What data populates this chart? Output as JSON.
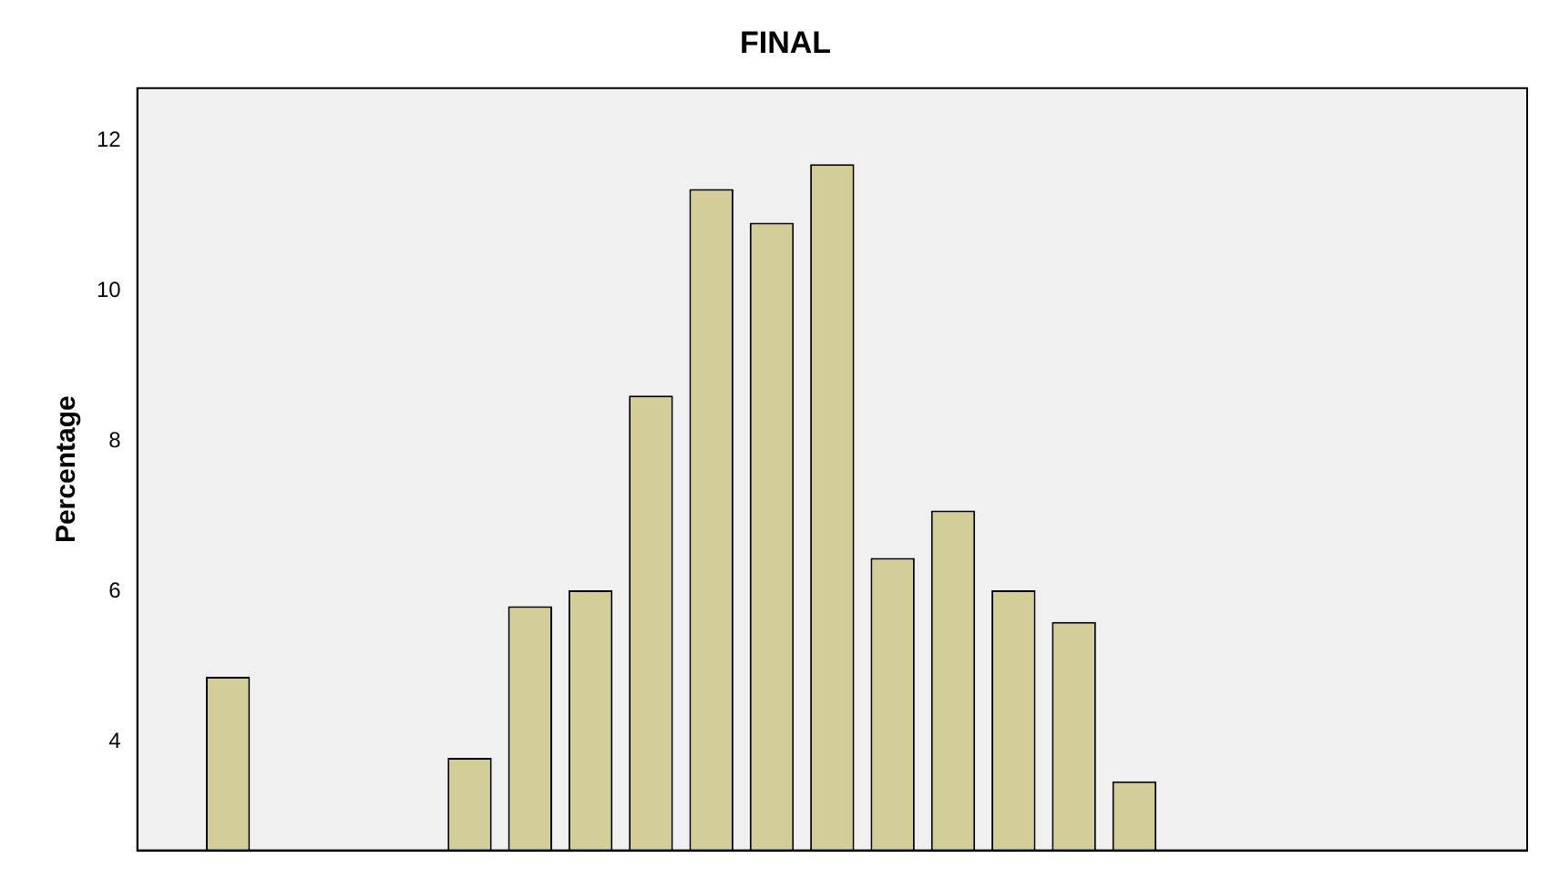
{
  "chart_data": {
    "type": "bar",
    "title": "FINAL",
    "ylabel": "Percentage",
    "categories": [
      null,
      null,
      null,
      null,
      null,
      null,
      null,
      null,
      null,
      null,
      null,
      null,
      null,
      null,
      null,
      null,
      null,
      null,
      null,
      null,
      null,
      null,
      null
    ],
    "values": [
      null,
      4.87,
      null,
      null,
      null,
      3.79,
      5.81,
      6.02,
      8.61,
      11.36,
      10.91,
      11.69,
      6.45,
      7.08,
      6.02,
      5.6,
      3.48,
      null,
      null,
      null,
      null,
      null,
      null
    ],
    "color": "#d3ce98",
    "ylim": [
      2.56,
      12.7
    ],
    "yticks": [
      4,
      6,
      8,
      10,
      12
    ],
    "grid": false,
    "tick_labels": "y"
  }
}
